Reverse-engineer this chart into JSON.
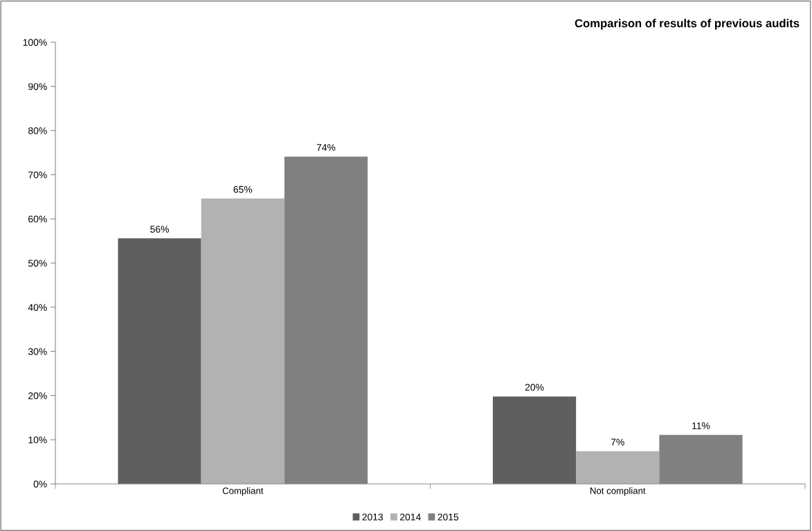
{
  "chart_data": {
    "type": "bar",
    "title": "Comparison of results of previous audits",
    "categories": [
      "Compliant",
      "Not compliant"
    ],
    "series": [
      {
        "name": "2013",
        "color": "#5f5f5f",
        "values": [
          55.6,
          19.8
        ],
        "value_labels": [
          "56%",
          "20%"
        ]
      },
      {
        "name": "2014",
        "color": "#b2b2b2",
        "values": [
          64.6,
          7.4
        ],
        "value_labels": [
          "65%",
          "7%"
        ]
      },
      {
        "name": "2015",
        "color": "#808080",
        "values": [
          74.1,
          11.1
        ],
        "value_labels": [
          "74%",
          "11%"
        ]
      }
    ],
    "ylim": [
      0,
      100
    ],
    "yticks": [
      {
        "value": 0,
        "label": "0%"
      },
      {
        "value": 10,
        "label": "10%"
      },
      {
        "value": 20,
        "label": "20%"
      },
      {
        "value": 30,
        "label": "30%"
      },
      {
        "value": 40,
        "label": "40%"
      },
      {
        "value": 50,
        "label": "50%"
      },
      {
        "value": 60,
        "label": "60%"
      },
      {
        "value": 70,
        "label": "70%"
      },
      {
        "value": 80,
        "label": "80%"
      },
      {
        "value": 90,
        "label": "90%"
      },
      {
        "value": 100,
        "label": "100%"
      }
    ],
    "grid": false,
    "legend": "bottom"
  }
}
